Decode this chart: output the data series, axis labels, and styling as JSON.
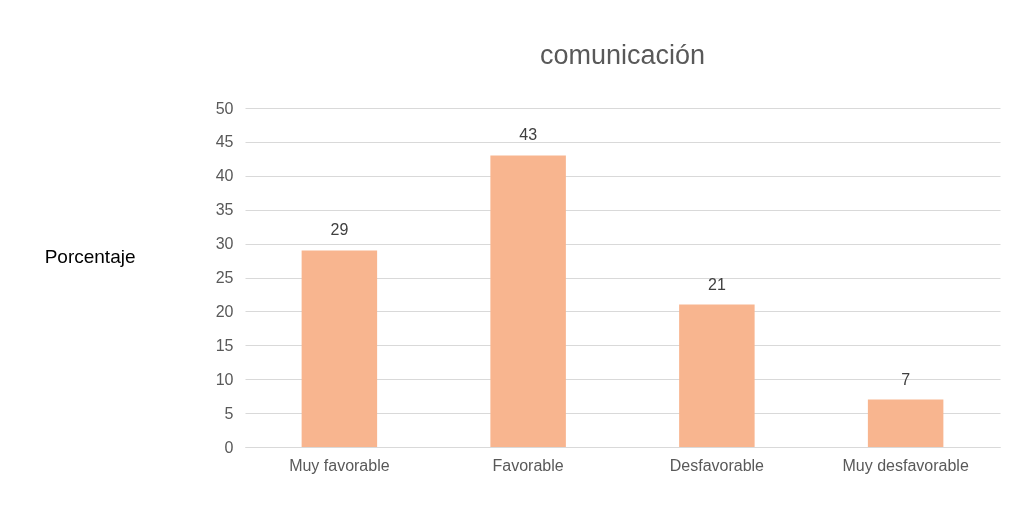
{
  "chart_data": {
    "type": "bar",
    "title": "comunicación",
    "ylabel": "Porcentaje",
    "categories": [
      "Muy favorable",
      "Favorable",
      "Desfavorable",
      "Muy desfavorable"
    ],
    "values": [
      29,
      43,
      21,
      7
    ],
    "color": "#f8b58f",
    "ylim": [
      0,
      50
    ],
    "yticks": [
      0,
      5,
      10,
      15,
      20,
      25,
      30,
      35,
      40,
      45,
      50
    ],
    "grid": "y",
    "data_labels": true
  }
}
